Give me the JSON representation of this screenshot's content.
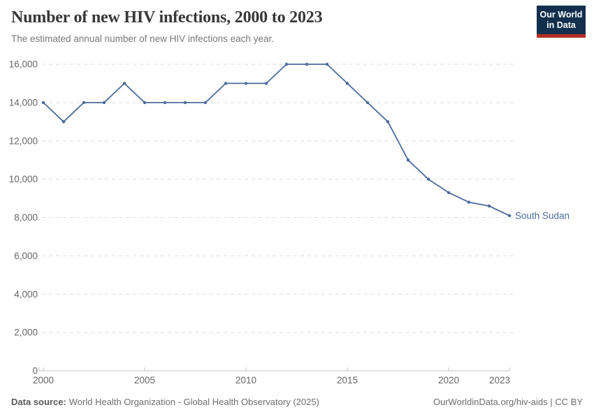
{
  "header": {
    "title": "Number of new HIV infections, 2000 to 2023",
    "subtitle": "The estimated annual number of new HIV infections each year."
  },
  "logo": {
    "line1": "Our World",
    "line2": "in Data"
  },
  "chart_data": {
    "type": "line",
    "title": "Number of new HIV infections, 2000 to 2023",
    "entity": "South Sudan",
    "x": [
      2000,
      2001,
      2002,
      2003,
      2004,
      2005,
      2006,
      2007,
      2008,
      2009,
      2010,
      2011,
      2012,
      2013,
      2014,
      2015,
      2016,
      2017,
      2018,
      2019,
      2020,
      2021,
      2022,
      2023
    ],
    "series": [
      {
        "name": "South Sudan",
        "values": [
          14000,
          13000,
          14000,
          14000,
          15000,
          14000,
          14000,
          14000,
          14000,
          15000,
          15000,
          15000,
          16000,
          16000,
          16000,
          15000,
          14000,
          13000,
          11000,
          10000,
          9300,
          8800,
          8600,
          8100
        ]
      }
    ],
    "ylim": [
      0,
      16000
    ],
    "yticks": [
      {
        "value": 0,
        "label": "0"
      },
      {
        "value": 2000,
        "label": "2,000"
      },
      {
        "value": 4000,
        "label": "4,000"
      },
      {
        "value": 6000,
        "label": "6,000"
      },
      {
        "value": 8000,
        "label": "8,000"
      },
      {
        "value": 10000,
        "label": "10,000"
      },
      {
        "value": 12000,
        "label": "12,000"
      },
      {
        "value": 14000,
        "label": "14,000"
      },
      {
        "value": 16000,
        "label": "16,000"
      }
    ],
    "xticks": [
      {
        "value": 2000,
        "label": "2000"
      },
      {
        "value": 2005,
        "label": "2005"
      },
      {
        "value": 2010,
        "label": "2010"
      },
      {
        "value": 2015,
        "label": "2015"
      },
      {
        "value": 2020,
        "label": "2020"
      },
      {
        "value": 2023,
        "label": "2023"
      }
    ],
    "grid": "horizontal-dashed",
    "legend_position": "entity-label-right-of-line",
    "marker": "circle"
  },
  "colors": {
    "line": "#4C6B9C",
    "entity_label": "#4C6B9C",
    "logo_bg": "#12304d",
    "logo_stripe": "#b52d23",
    "grid": "#dddddd",
    "axis": "#c3c3c3",
    "tick_text": "#666666",
    "title_text": "#383838",
    "subtitle_text": "#787878"
  },
  "footer": {
    "datasource_label": "Data source:",
    "datasource_text": "World Health Organization - Global Health Observatory (2025)",
    "license_text": "OurWorldinData.org/hiv-aids | CC BY"
  }
}
